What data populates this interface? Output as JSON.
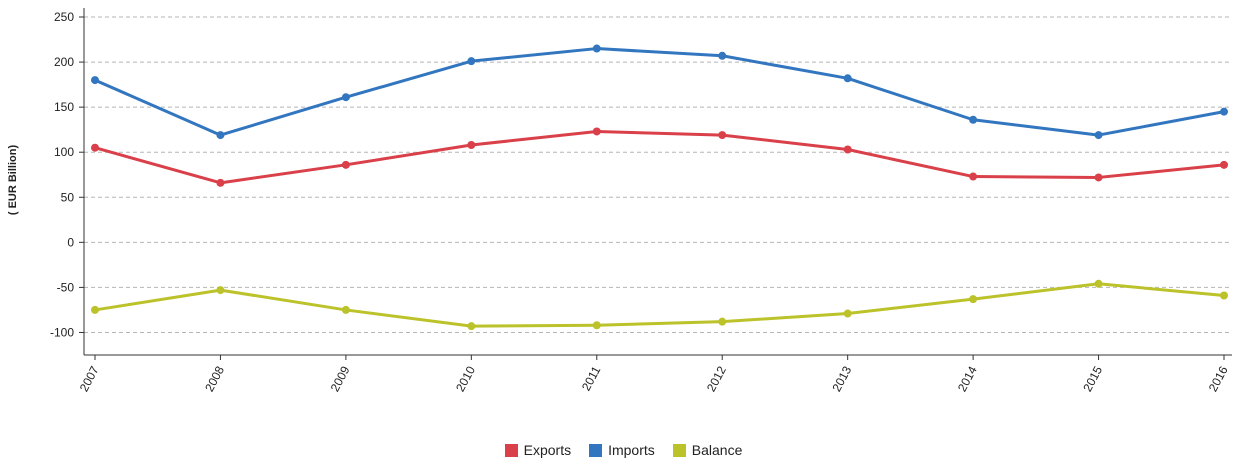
{
  "chart_data": {
    "type": "line",
    "title": "",
    "xlabel": "",
    "ylabel": "( EUR Billion)",
    "categories": [
      "2007",
      "2008",
      "2009",
      "2010",
      "2011",
      "2012",
      "2013",
      "2014",
      "2015",
      "2016"
    ],
    "ylim": [
      -125,
      260
    ],
    "yticks": [
      250,
      200,
      150,
      100,
      50,
      0,
      -50,
      -100
    ],
    "grid": true,
    "legend_position": "bottom-center",
    "series": [
      {
        "name": "Exports",
        "color": "#d94049",
        "values": [
          105,
          66,
          86,
          108,
          123,
          119,
          103,
          73,
          72,
          86
        ]
      },
      {
        "name": "Imports",
        "color": "#3276c0",
        "values": [
          180,
          119,
          161,
          201,
          215,
          207,
          182,
          136,
          119,
          145
        ]
      },
      {
        "name": "Balance",
        "color": "#bcc22a",
        "values": [
          -75,
          -53,
          -75,
          -93,
          -92,
          -88,
          -79,
          -63,
          -46,
          -59
        ]
      }
    ]
  }
}
